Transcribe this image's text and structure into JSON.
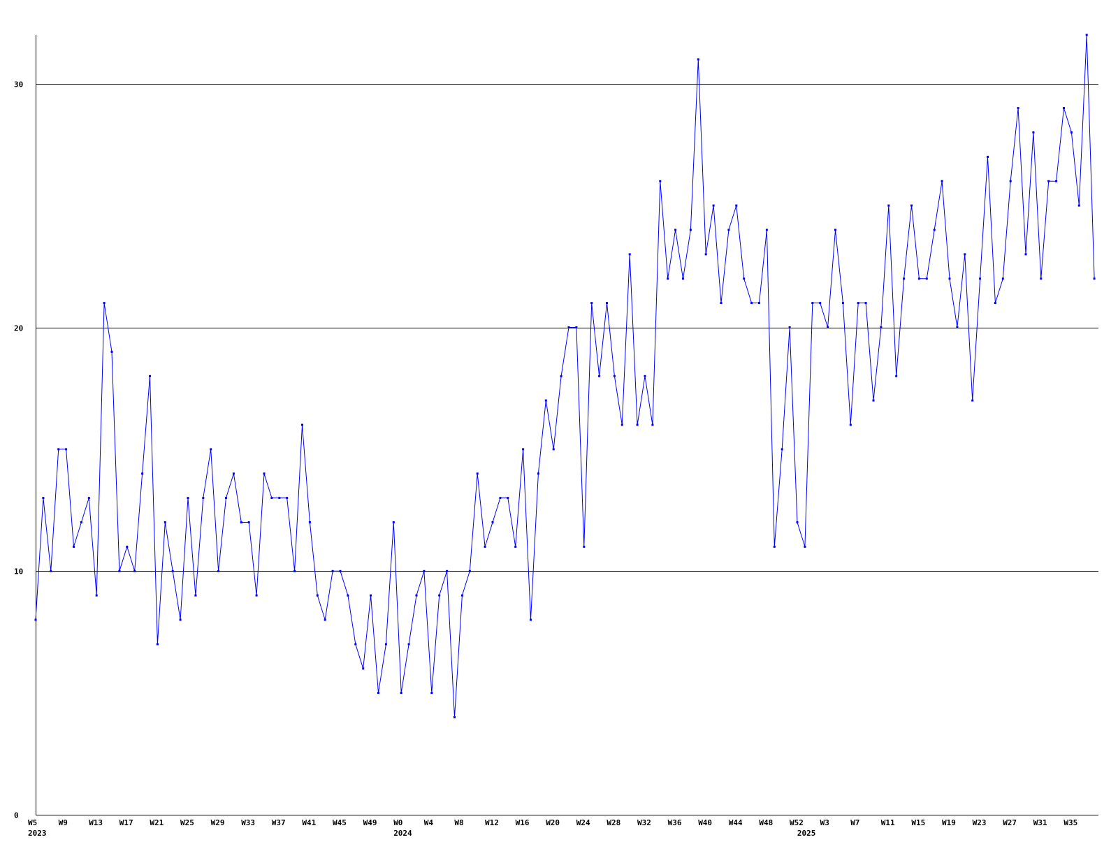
{
  "chart_data": {
    "type": "line",
    "title": "",
    "xlabel": "",
    "ylabel": "",
    "ylim": [
      0,
      32
    ],
    "yticks": [
      "0",
      "10",
      "20",
      "30"
    ],
    "ytick_values": [
      0,
      10,
      20,
      30
    ],
    "grid": "horizontal",
    "colors": {
      "line": "#0000ff",
      "axis": "#000000",
      "grid": "#000000",
      "background": "#ffffff"
    },
    "xticks": [
      {
        "index": 0,
        "label": "W5"
      },
      {
        "index": 4,
        "label": "W9"
      },
      {
        "index": 8,
        "label": "W13"
      },
      {
        "index": 12,
        "label": "W17"
      },
      {
        "index": 16,
        "label": "W21"
      },
      {
        "index": 20,
        "label": "W25"
      },
      {
        "index": 24,
        "label": "W29"
      },
      {
        "index": 28,
        "label": "W33"
      },
      {
        "index": 32,
        "label": "W37"
      },
      {
        "index": 36,
        "label": "W41"
      },
      {
        "index": 40,
        "label": "W45"
      },
      {
        "index": 44,
        "label": "W49"
      },
      {
        "index": 48,
        "label": "W0"
      },
      {
        "index": 52,
        "label": "W4"
      },
      {
        "index": 56,
        "label": "W8"
      },
      {
        "index": 60,
        "label": "W12"
      },
      {
        "index": 64,
        "label": "W16"
      },
      {
        "index": 68,
        "label": "W20"
      },
      {
        "index": 72,
        "label": "W24"
      },
      {
        "index": 76,
        "label": "W28"
      },
      {
        "index": 80,
        "label": "W32"
      },
      {
        "index": 84,
        "label": "W36"
      },
      {
        "index": 88,
        "label": "W40"
      },
      {
        "index": 92,
        "label": "W44"
      },
      {
        "index": 96,
        "label": "W48"
      },
      {
        "index": 100,
        "label": "W52"
      },
      {
        "index": 104,
        "label": "W3"
      },
      {
        "index": 108,
        "label": "W7"
      },
      {
        "index": 112,
        "label": "W11"
      },
      {
        "index": 116,
        "label": "W15"
      },
      {
        "index": 120,
        "label": "W19"
      },
      {
        "index": 124,
        "label": "W23"
      },
      {
        "index": 128,
        "label": "W27"
      },
      {
        "index": 132,
        "label": "W31"
      },
      {
        "index": 136,
        "label": "W35"
      }
    ],
    "year_labels": [
      {
        "index": 0,
        "label": "2023"
      },
      {
        "index": 48,
        "label": "2024"
      },
      {
        "index": 101,
        "label": "2025"
      }
    ],
    "values": [
      8,
      13,
      10,
      15,
      15,
      11,
      12,
      13,
      9,
      21,
      19,
      10,
      11,
      10,
      14,
      18,
      7,
      12,
      10,
      8,
      13,
      9,
      13,
      15,
      10,
      13,
      14,
      12,
      12,
      9,
      14,
      13,
      13,
      13,
      10,
      16,
      12,
      9,
      8,
      10,
      10,
      9,
      7,
      6,
      9,
      5,
      7,
      12,
      5,
      7,
      9,
      10,
      5,
      9,
      10,
      4,
      9,
      10,
      14,
      11,
      12,
      13,
      13,
      11,
      15,
      8,
      14,
      17,
      15,
      18,
      20,
      20,
      11,
      21,
      18,
      21,
      18,
      16,
      23,
      16,
      18,
      16,
      26,
      22,
      24,
      22,
      24,
      31,
      23,
      25,
      21,
      24,
      25,
      22,
      21,
      21,
      24,
      11,
      15,
      20,
      12,
      11,
      21,
      21,
      20,
      24,
      21,
      16,
      21,
      21,
      17,
      20,
      25,
      18,
      22,
      25,
      22,
      22,
      24,
      26,
      22,
      20,
      23,
      17,
      22,
      27,
      21,
      22,
      26,
      29,
      23,
      28,
      22,
      26,
      26,
      29,
      28,
      25,
      32,
      22
    ]
  }
}
